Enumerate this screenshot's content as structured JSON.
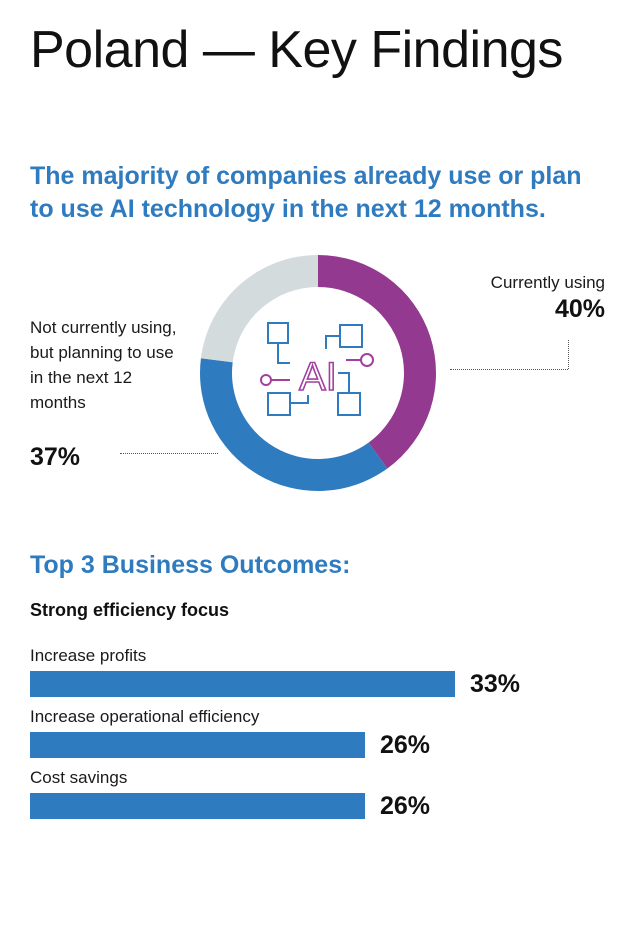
{
  "title": "Poland — Key Findings",
  "headline": "The majority of companies already use or plan to use AI technology in the next 12 months.",
  "colors": {
    "accent_blue": "#2f7bbf",
    "purple": "#93398f",
    "grey": "#d3dbdd",
    "icon_purple": "#a23fa0",
    "icon_blue": "#2f7bbf"
  },
  "icon": "ai-circuit-icon",
  "icon_text": "AI",
  "chart_data": [
    {
      "type": "pie",
      "donut": true,
      "title": "",
      "slices": [
        {
          "label": "Currently using",
          "value": 40,
          "display": "40%",
          "color": "#93398f"
        },
        {
          "label": "Not currently using, but planning to use in the next 12 months",
          "value": 37,
          "display": "37%",
          "color": "#2f7bbf"
        },
        {
          "label": "",
          "value": 23,
          "color": "#d3dbdd"
        }
      ]
    },
    {
      "type": "bar",
      "orientation": "horizontal",
      "title": "Top 3 Business Outcomes:",
      "subtitle": "Strong efficiency focus",
      "categories": [
        "Increase profits",
        "Increase operational efficiency",
        "Cost savings"
      ],
      "values": [
        33,
        26,
        26
      ],
      "display": [
        "33%",
        "26%",
        "26%"
      ],
      "color": "#2f7bbf"
    }
  ]
}
